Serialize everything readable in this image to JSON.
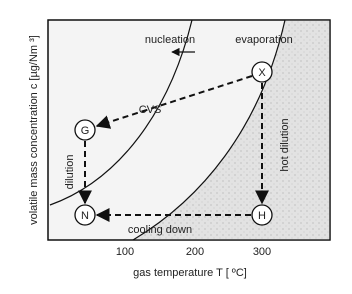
{
  "x_axis": {
    "label": "gas temperature T [ ºC]",
    "ticks": [
      "100",
      "200",
      "300"
    ]
  },
  "y_axis": {
    "label": "volatile mass concentration c [µg/Nm ³]"
  },
  "nodes": [
    {
      "label": "X"
    },
    {
      "label": "G"
    },
    {
      "label": "N"
    },
    {
      "label": "H"
    }
  ],
  "annotations": {
    "nucleation": "nucleation",
    "evaporation": "evaporation",
    "cvs": "CVS",
    "dilution": "dilution",
    "hot_dilution": "hot dilution",
    "cooling_down": "cooling down"
  }
}
